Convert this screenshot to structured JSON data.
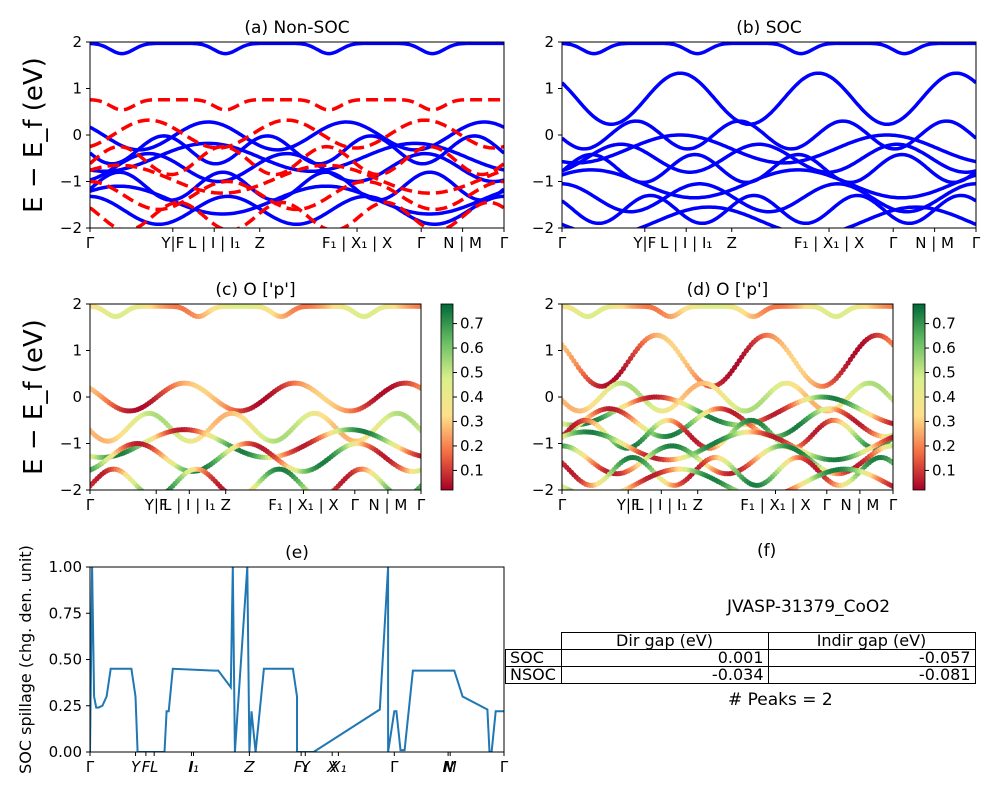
{
  "chart_data": [
    {
      "id": "a",
      "type": "line",
      "title": "(a) Non-SOC",
      "ylabel": "E − E_f (eV)",
      "ylim": [
        -2,
        2
      ],
      "yticks": [
        "2",
        "1",
        "0",
        "−1",
        "−2"
      ],
      "xticks": [
        "Γ",
        "Y|F",
        "L | I | I₁",
        "Z",
        "F₁ | X₁ | X",
        "Γ",
        "N | M",
        "Γ"
      ],
      "series": [
        {
          "color": "#0000ff",
          "style": "solid",
          "bands": [
            1.97,
            -0.02,
            -0.32,
            -0.48,
            -0.7,
            -1.1,
            -1.4,
            -1.62
          ]
        },
        {
          "color": "#ff0000",
          "style": "dashed",
          "bands": [
            0.76,
            0.02,
            -0.55,
            -0.95,
            -1.3,
            -1.75
          ]
        }
      ]
    },
    {
      "id": "b",
      "type": "line",
      "title": "(b) SOC",
      "ylim": [
        -2,
        2
      ],
      "yticks": [
        "2",
        "1",
        "0",
        "−1",
        "−2"
      ],
      "xticks": [
        "Γ",
        "Y|F",
        "L | I | I₁",
        "Z",
        "F₁ | X₁ | X",
        "Γ",
        "N | M",
        "Γ"
      ],
      "series": [
        {
          "color": "#0000ff",
          "style": "solid",
          "bands": [
            1.97,
            0.78,
            0.0,
            -0.3,
            -0.5,
            -0.72,
            -1.05,
            -1.35,
            -1.6,
            -1.85
          ]
        }
      ]
    },
    {
      "id": "c",
      "type": "scatter",
      "title": "(c)  O ['p']",
      "ylabel": "E − E_f (eV)",
      "ylim": [
        -2,
        2
      ],
      "yticks": [
        "2",
        "1",
        "0",
        "−1",
        "−2"
      ],
      "xticks": [
        "Γ",
        "Y|F",
        "L | I | I₁",
        "Z",
        "F₁ | X₁ | X",
        "Γ",
        "N | M",
        "Γ"
      ],
      "colorbar": {
        "ticks": [
          "0.7",
          "0.6",
          "0.5",
          "0.4",
          "0.3",
          "0.2",
          "0.1"
        ],
        "range": [
          0.02,
          0.78
        ]
      },
      "bands": [
        1.95,
        0.0,
        -0.65,
        -1.0,
        -1.3,
        -1.85
      ]
    },
    {
      "id": "d",
      "type": "scatter",
      "title": "(d) O ['p']",
      "ylim": [
        -2,
        2
      ],
      "yticks": [
        "2",
        "1",
        "0",
        "−1",
        "−2"
      ],
      "xticks": [
        "Γ",
        "Y|F",
        "L | I | I₁",
        "Z",
        "F₁ | X₁ | X",
        "Γ",
        "N | M",
        "Γ"
      ],
      "colorbar": {
        "ticks": [
          "0.7",
          "0.6",
          "0.5",
          "0.4",
          "0.3",
          "0.2",
          "0.1"
        ],
        "range": [
          0.02,
          0.78
        ]
      },
      "bands": [
        1.95,
        0.78,
        0.0,
        -0.3,
        -0.55,
        -0.8,
        -1.05,
        -1.35,
        -1.6,
        -1.85
      ]
    },
    {
      "id": "e",
      "type": "line",
      "title": "(e)",
      "ylabel": "SOC spillage (chg. den. unit)",
      "ylim": [
        0,
        1
      ],
      "yticks": [
        "1.00",
        "0.75",
        "0.50",
        "0.25",
        "0.00"
      ],
      "xticks": [
        "Γ",
        "Y",
        "F",
        "L",
        "I",
        "I₁",
        "Z",
        "F₁",
        "Y",
        "X",
        "X₁",
        "Γ",
        "N",
        "M",
        "Γ"
      ],
      "series": [
        {
          "color": "#1f77b4",
          "x": [
            0,
            0.005,
            0.01,
            0.015,
            0.02,
            0.03,
            0.04,
            0.05,
            0.06,
            0.1,
            0.11,
            0.115,
            0.18,
            0.185,
            0.19,
            0.2,
            0.3,
            0.31,
            0.34,
            0.345,
            0.35,
            0.38,
            0.385,
            0.39,
            0.4,
            0.41,
            0.42,
            0.49,
            0.5,
            0.5,
            0.52,
            0.54,
            0.7,
            0.72,
            0.72,
            0.735,
            0.74,
            0.75,
            0.76,
            0.78,
            0.8,
            0.88,
            0.9,
            0.96,
            0.965,
            0.97,
            0.98,
            0.99,
            1.0
          ],
          "y": [
            0.0,
            1.0,
            0.3,
            0.24,
            0.24,
            0.25,
            0.3,
            0.45,
            0.45,
            0.45,
            0.3,
            0.0,
            0.0,
            0.22,
            0.22,
            0.45,
            0.44,
            0.44,
            0.35,
            1.0,
            0.0,
            1.0,
            0.0,
            0.22,
            0.0,
            0.22,
            0.45,
            0.45,
            0.3,
            0.0,
            0.0,
            0.0,
            0.23,
            1.0,
            0.0,
            0.22,
            0.22,
            0.01,
            0.01,
            0.44,
            0.44,
            0.44,
            0.3,
            0.23,
            0.0,
            0.0,
            0.22,
            0.22,
            0.22
          ]
        }
      ]
    }
  ],
  "panel_f": {
    "title": "(f)",
    "material": "JVASP-31379_CoO2",
    "table": {
      "headers": [
        "Dir gap (eV)",
        "Indir gap (eV)"
      ],
      "rows": [
        {
          "label": "SOC",
          "dir": "0.001",
          "indir": "-0.057"
        },
        {
          "label": "NSOC",
          "dir": "-0.034",
          "indir": "-0.081"
        }
      ]
    },
    "peaks": "# Peaks = 2"
  }
}
